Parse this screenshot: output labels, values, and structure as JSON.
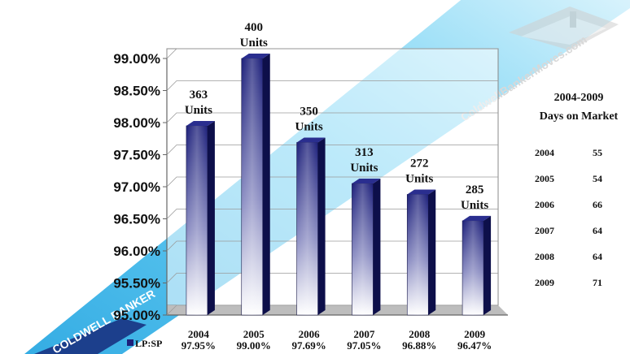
{
  "chart_data": {
    "type": "bar",
    "categories": [
      "2004",
      "2005",
      "2006",
      "2007",
      "2008",
      "2009"
    ],
    "series": [
      {
        "name": "LP:SP",
        "values": [
          97.95,
          99.0,
          97.69,
          97.05,
          96.88,
          96.47
        ]
      }
    ],
    "value_labels": [
      "97.95%",
      "99.00%",
      "97.69%",
      "97.05%",
      "96.88%",
      "96.47%"
    ],
    "annotations": [
      {
        "line1": "363",
        "line2": "Units"
      },
      {
        "line1": "400",
        "line2": "Units"
      },
      {
        "line1": "350",
        "line2": "Units"
      },
      {
        "line1": "313",
        "line2": "Units"
      },
      {
        "line1": "272",
        "line2": "Units"
      },
      {
        "line1": "285",
        "line2": "Units"
      }
    ],
    "ylim": [
      95.0,
      99.0
    ],
    "yticks": [
      "95.00%",
      "95.50%",
      "96.00%",
      "96.50%",
      "97.00%",
      "97.50%",
      "98.00%",
      "98.50%",
      "99.00%"
    ],
    "grid": true,
    "legend_position": "bottom-left",
    "bar_colors": {
      "top": "#1c1f7a",
      "bottom": "#ffffff",
      "side": "#0d0f4a",
      "cap": "#2a2e8f"
    }
  },
  "days_on_market": {
    "title_line1": "2004-2009",
    "title_line2": "Days on Market",
    "rows": [
      {
        "year": "2004",
        "days": "55"
      },
      {
        "year": "2005",
        "days": "54"
      },
      {
        "year": "2006",
        "days": "66"
      },
      {
        "year": "2007",
        "days": "64"
      },
      {
        "year": "2008",
        "days": "64"
      },
      {
        "year": "2009",
        "days": "71"
      }
    ]
  },
  "watermark": {
    "text": "ColdwellBankerMoves.com",
    "logo_text": "COLDWELL BANKER",
    "stripe_color": "#39b8ec"
  }
}
